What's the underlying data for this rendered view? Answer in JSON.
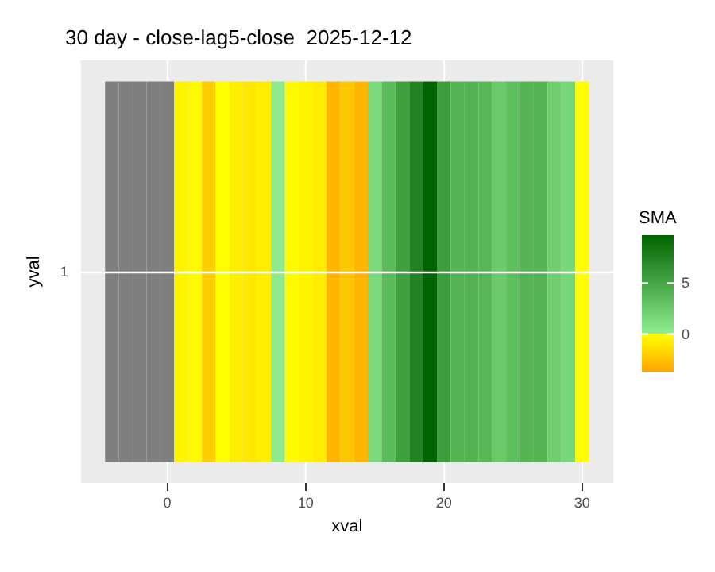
{
  "chart_data": {
    "type": "heatmap",
    "title": "30 day - close-lag5-close  2025-12-12",
    "xlabel": "xval",
    "ylabel": "yval",
    "clabel": "SMA",
    "x": [
      -4,
      -3,
      -2,
      -1,
      0,
      1,
      2,
      3,
      4,
      5,
      6,
      7,
      8,
      9,
      10,
      11,
      12,
      13,
      14,
      15,
      16,
      17,
      18,
      19,
      20,
      21,
      22,
      23,
      24,
      25,
      26,
      27,
      28,
      29,
      30
    ],
    "y_categories": [
      "1"
    ],
    "cells": [
      [
        null,
        null,
        null,
        null,
        null,
        -0.5,
        -0.2,
        -2,
        -0.05,
        -0.7,
        -1,
        -0.7,
        0.2,
        -0.2,
        -0.5,
        -0.8,
        -3,
        -2.3,
        -3,
        1.5,
        3.5,
        5.5,
        7.5,
        9.7,
        5.7,
        4,
        4.2,
        3.8,
        2.5,
        3.3,
        4,
        4,
        2.2,
        1.6,
        -0.1
      ]
    ],
    "clim": [
      -3.7,
      9.7
    ],
    "cticks": [
      0,
      5
    ],
    "xlim": [
      -6.25,
      32.25
    ],
    "xticks": [
      0,
      10,
      20,
      30
    ],
    "grid": true
  }
}
